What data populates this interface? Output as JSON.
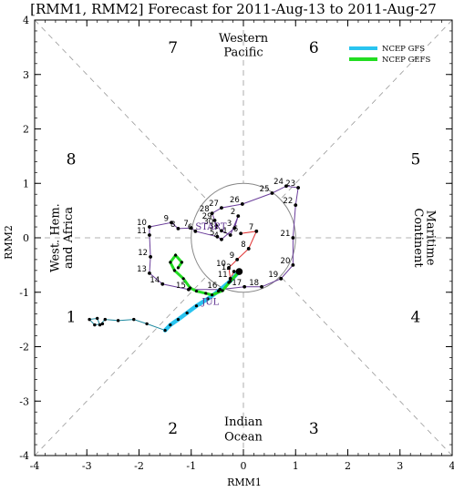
{
  "chart_data": {
    "type": "scatter",
    "title": "[RMM1, RMM2] Forecast for 2011-Aug-13 to 2011-Aug-27",
    "xlabel": "RMM1",
    "ylabel": "RMM2",
    "xlim": [
      -4,
      4
    ],
    "ylim": [
      -4,
      4
    ],
    "xticks": [
      "-4",
      "-3",
      "-2",
      "-1",
      "0",
      "1",
      "2",
      "3",
      "4"
    ],
    "yticks": [
      "-4",
      "-3",
      "-2",
      "-1",
      "0",
      "1",
      "2",
      "3",
      "4"
    ],
    "phases": [
      {
        "label": "1",
        "x": -3.3,
        "y": -1.45
      },
      {
        "label": "2",
        "x": -1.35,
        "y": -3.5
      },
      {
        "label": "3",
        "x": 1.35,
        "y": -3.5
      },
      {
        "label": "4",
        "x": 3.3,
        "y": -1.45
      },
      {
        "label": "5",
        "x": 3.3,
        "y": 1.45
      },
      {
        "label": "6",
        "x": 1.35,
        "y": 3.5
      },
      {
        "label": "7",
        "x": -1.35,
        "y": 3.5
      },
      {
        "label": "8",
        "x": -3.3,
        "y": 1.45
      }
    ],
    "regions": {
      "top": [
        "Western",
        "Pacific"
      ],
      "bottom": [
        "Indian",
        "Ocean"
      ],
      "left": [
        "West. Hem.",
        "and Africa"
      ],
      "right": [
        "Maritime",
        "Continent"
      ]
    },
    "legend": {
      "placement": "top-right",
      "entries": [
        {
          "name": "NCEP GFS",
          "color": "#29c4f0"
        },
        {
          "name": "NCEP GEFS",
          "color": "#22dd22"
        }
      ]
    },
    "colors": {
      "observed_track": "#6a3d9a",
      "recent_track": "#e03030",
      "gfs": "#29c4f0",
      "gefs": "#22dd22",
      "ensemble": "#1f8aa0",
      "circle": "#888888"
    },
    "month_labels": [
      {
        "label": "START",
        "x": -0.92,
        "y": 0.15
      },
      {
        "label": "JUL",
        "x": -0.8,
        "y": -1.23
      }
    ],
    "observed_points": [
      {
        "label": "31",
        "x": -0.42,
        "y": 0.13
      },
      {
        "label": "1",
        "x": -0.25,
        "y": 0.05
      },
      {
        "label": "2",
        "x": -0.1,
        "y": 0.4
      },
      {
        "label": "3",
        "x": -0.17,
        "y": 0.18
      },
      {
        "label": "4",
        "x": -0.42,
        "y": -0.03
      },
      {
        "label": "5",
        "x": -0.5,
        "y": 0.02
      },
      {
        "label": "6",
        "x": -0.92,
        "y": 0.12
      },
      {
        "label": "7",
        "x": -1.0,
        "y": 0.18
      },
      {
        "label": "8",
        "x": -1.25,
        "y": 0.17
      },
      {
        "label": "9",
        "x": -1.38,
        "y": 0.28
      },
      {
        "label": "10",
        "x": -1.8,
        "y": 0.2
      },
      {
        "label": "11",
        "x": -1.8,
        "y": 0.05
      },
      {
        "label": "12",
        "x": -1.78,
        "y": -0.35
      },
      {
        "label": "13",
        "x": -1.8,
        "y": -0.65
      },
      {
        "label": "14",
        "x": -1.55,
        "y": -0.85
      },
      {
        "label": "15",
        "x": -1.05,
        "y": -0.95
      },
      {
        "label": "16",
        "x": -0.45,
        "y": -0.95
      },
      {
        "label": "17",
        "x": 0.02,
        "y": -0.9
      },
      {
        "label": "18",
        "x": 0.35,
        "y": -0.9
      },
      {
        "label": "19",
        "x": 0.72,
        "y": -0.75
      },
      {
        "label": "20",
        "x": 0.95,
        "y": -0.5
      },
      {
        "label": "21",
        "x": 0.95,
        "y": 0.0
      },
      {
        "label": "22",
        "x": 1.0,
        "y": 0.6
      },
      {
        "label": "23",
        "x": 1.05,
        "y": 0.92
      },
      {
        "label": "24",
        "x": 0.82,
        "y": 0.95
      },
      {
        "label": "25",
        "x": 0.55,
        "y": 0.82
      },
      {
        "label": "26",
        "x": -0.02,
        "y": 0.62
      },
      {
        "label": "27",
        "x": -0.42,
        "y": 0.55
      },
      {
        "label": "28",
        "x": -0.6,
        "y": 0.45
      },
      {
        "label": "29",
        "x": -0.55,
        "y": 0.32
      },
      {
        "label": "30",
        "x": -0.52,
        "y": 0.22
      }
    ],
    "recent_points": [
      {
        "label": "6",
        "x": -0.05,
        "y": 0.08
      },
      {
        "label": "7",
        "x": 0.25,
        "y": 0.12
      },
      {
        "label": "8",
        "x": 0.1,
        "y": -0.2
      },
      {
        "label": "9",
        "x": -0.12,
        "y": -0.4
      },
      {
        "label": "10",
        "x": -0.28,
        "y": -0.55
      },
      {
        "label": "11",
        "x": -0.25,
        "y": -0.75
      },
      {
        "label": "12",
        "x": -0.18,
        "y": -0.62
      }
    ],
    "current_point": {
      "x": -0.08,
      "y": -0.62
    },
    "gefs_track": {
      "x": [
        -0.08,
        -0.25,
        -0.4,
        -0.6,
        -0.72,
        -0.9,
        -1.02,
        -1.15,
        -1.32,
        -1.4,
        -1.3,
        -1.18,
        -1.25
      ],
      "y": [
        -0.62,
        -0.8,
        -0.97,
        -1.05,
        -1.02,
        -0.98,
        -0.92,
        -0.75,
        -0.6,
        -0.45,
        -0.32,
        -0.45,
        -0.55
      ]
    },
    "gfs_track": {
      "x": [
        -0.08,
        -0.28,
        -0.48,
        -0.68,
        -0.9,
        -1.08,
        -1.25,
        -1.4,
        -1.5
      ],
      "y": [
        -0.62,
        -0.82,
        -0.98,
        -1.12,
        -1.25,
        -1.38,
        -1.5,
        -1.6,
        -1.7
      ]
    },
    "ensemble_track": {
      "x": [
        -1.5,
        -1.85,
        -2.1,
        -2.4,
        -2.65,
        -2.75,
        -2.8,
        -2.95,
        -2.85,
        -2.7
      ],
      "y": [
        -1.7,
        -1.58,
        -1.5,
        -1.52,
        -1.5,
        -1.6,
        -1.48,
        -1.5,
        -1.6,
        -1.58
      ]
    }
  }
}
